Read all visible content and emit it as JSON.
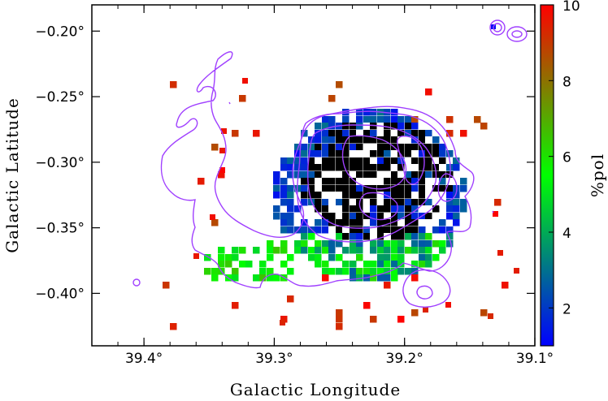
{
  "chart_data": {
    "type": "heatmap",
    "title": "",
    "xlabel": "Galactic Longitude",
    "ylabel": "Galactic Latitude",
    "colorbar_label": "%pol",
    "xlim": [
      39.44,
      39.1
    ],
    "ylim": [
      -0.44,
      -0.18
    ],
    "x_ticks": [
      39.4,
      39.3,
      39.2,
      39.1
    ],
    "x_tick_labels": [
      "39.4°",
      "39.3°",
      "39.2°",
      "39.1°"
    ],
    "y_ticks": [
      -0.2,
      -0.25,
      -0.3,
      -0.35,
      -0.4
    ],
    "y_tick_labels": [
      "−0.20°",
      "−0.25°",
      "−0.30°",
      "−0.35°",
      "−0.40°"
    ],
    "colorbar_ticks": [
      2,
      4,
      6,
      8,
      10
    ],
    "colorbar_range": [
      1,
      10
    ],
    "colormap": [
      "#0000ff",
      "#00ff00",
      "#ff0000"
    ],
    "contour_color": "#a040ff",
    "saturated_color": "#000000",
    "masked_color": "#ffffff",
    "grid": false
  }
}
